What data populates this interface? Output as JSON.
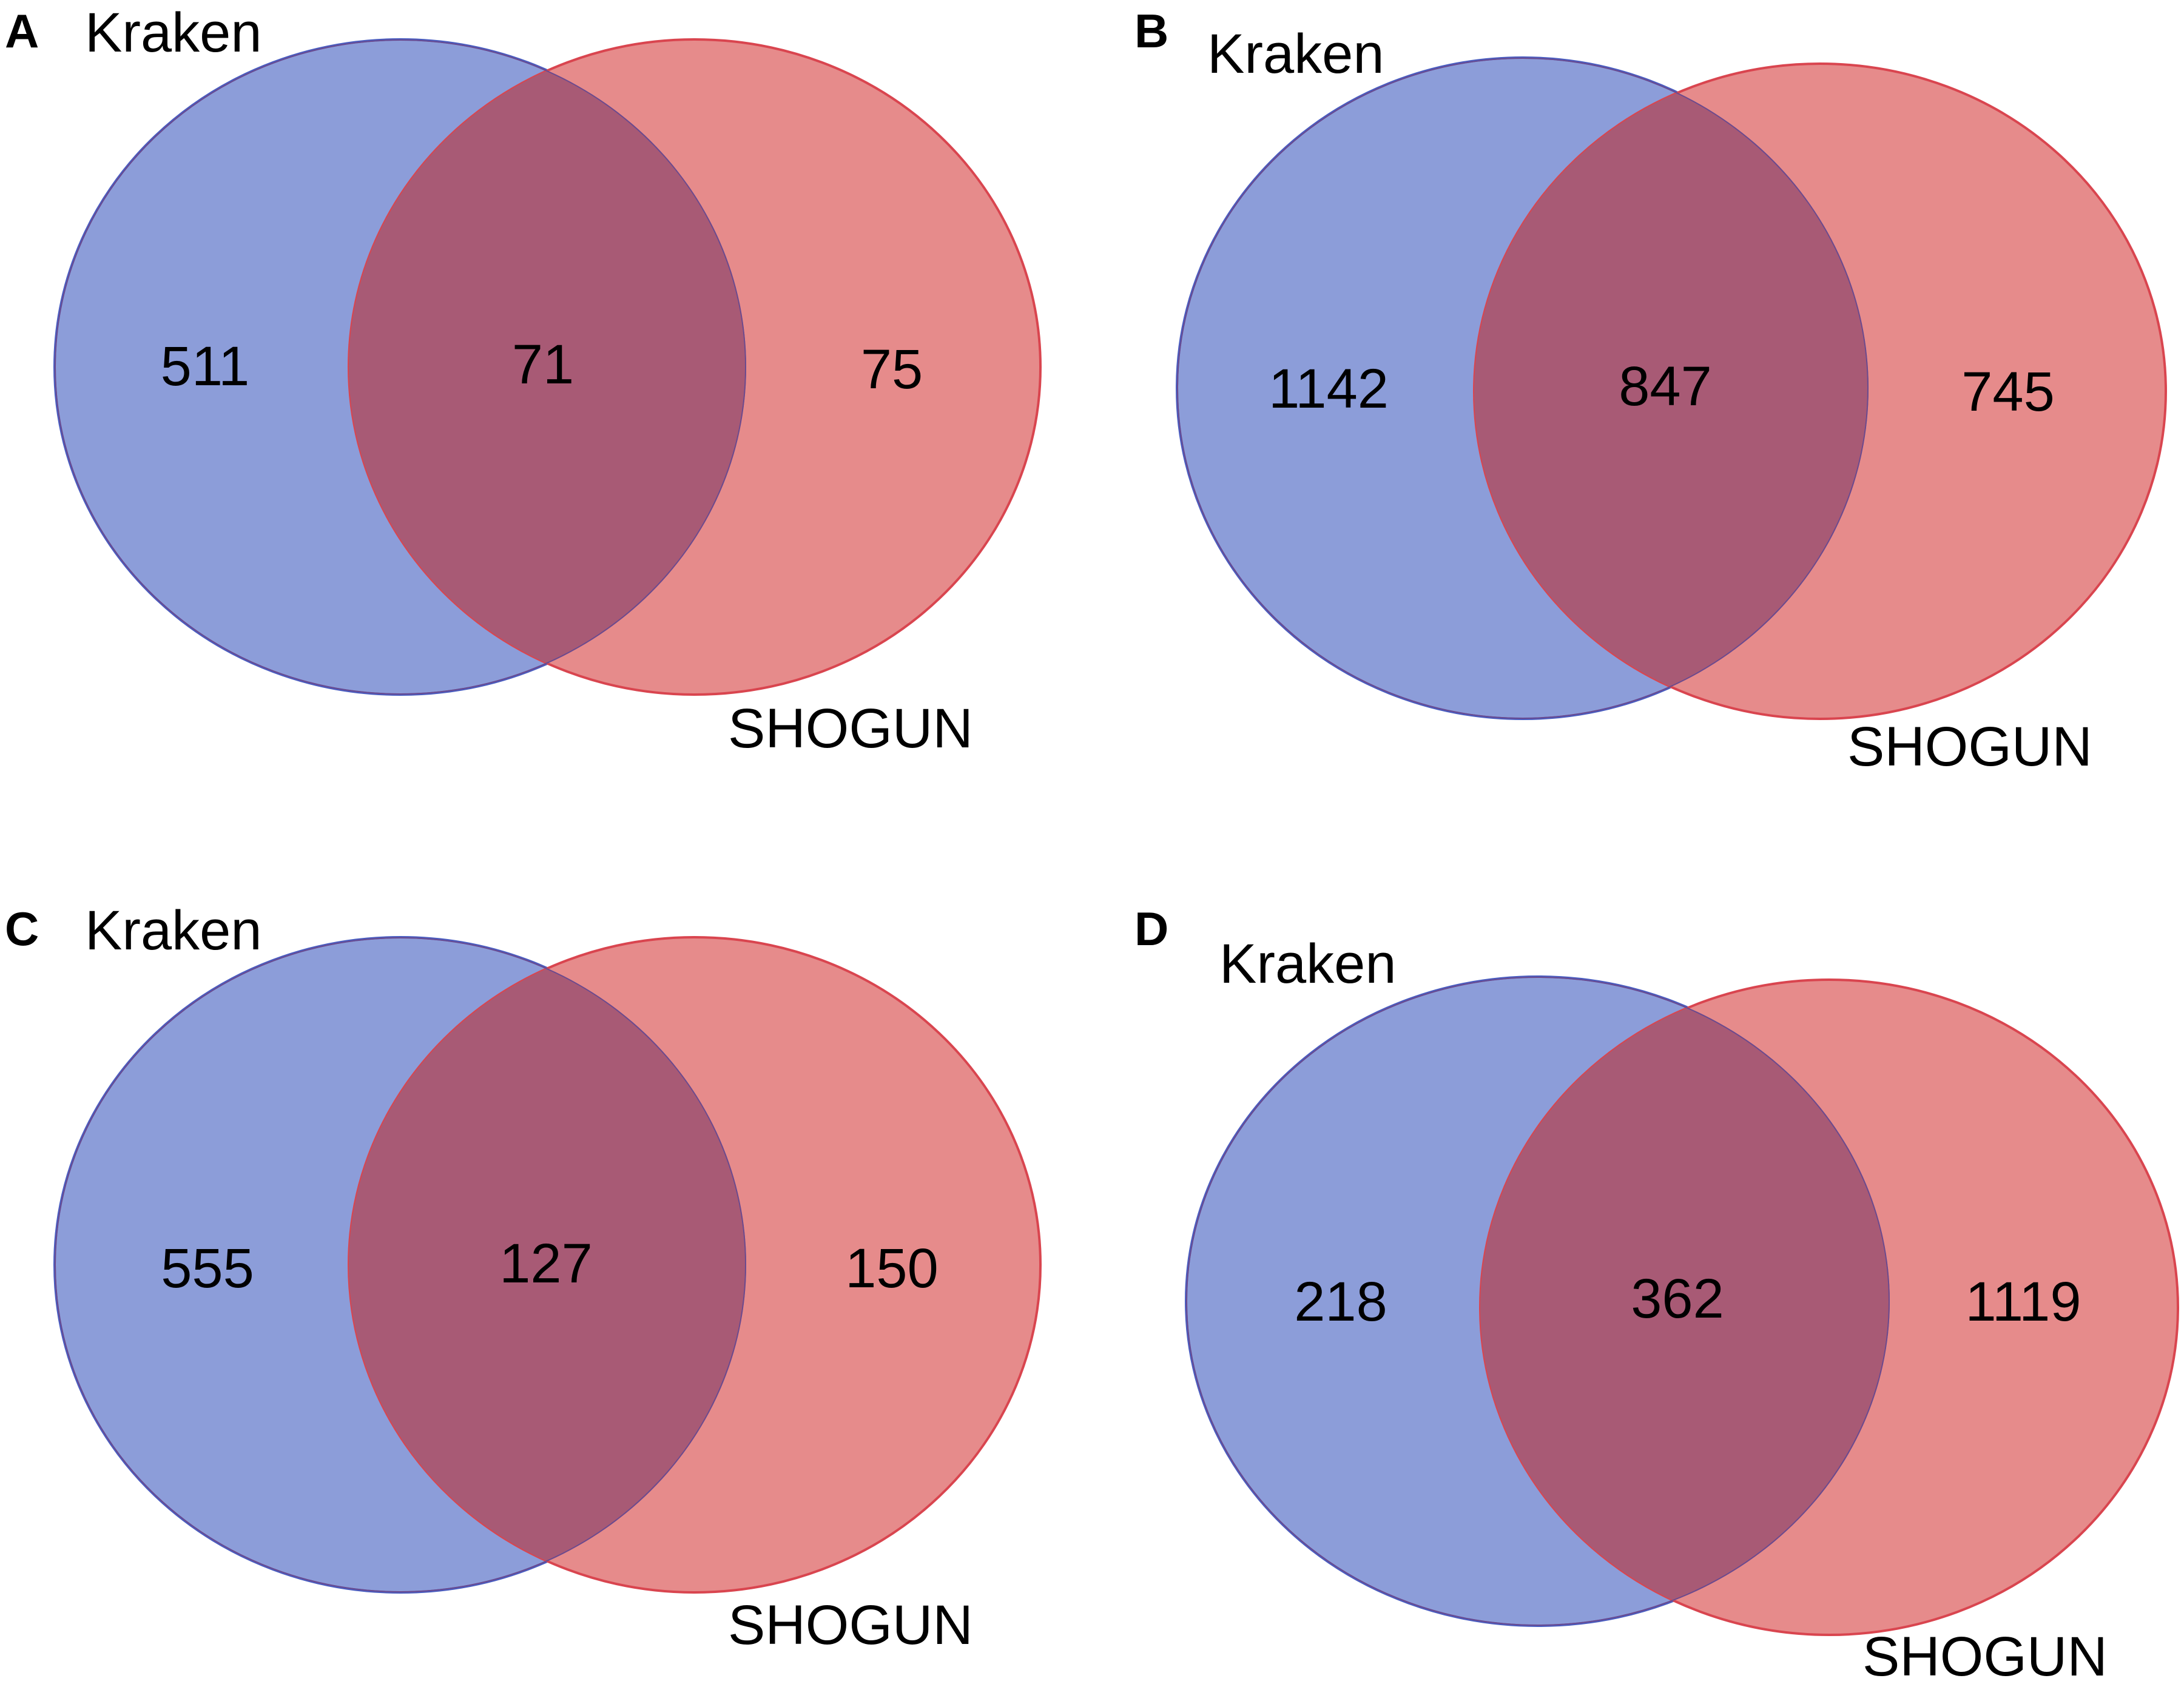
{
  "colors": {
    "kraken_fill": "#8c9dd9",
    "kraken_stroke": "#4a5dc0",
    "shogun_fill": "#e68b8b",
    "shogun_stroke": "#d9454f",
    "overlap_fill": "#a85a75"
  },
  "panels": [
    {
      "letter": "A",
      "set_a": "Kraken",
      "set_b": "SHOGUN",
      "only_a": "511",
      "both": "71",
      "only_b": "75"
    },
    {
      "letter": "B",
      "set_a": "Kraken",
      "set_b": "SHOGUN",
      "only_a": "1142",
      "both": "847",
      "only_b": "745"
    },
    {
      "letter": "C",
      "set_a": "Kraken",
      "set_b": "SHOGUN",
      "only_a": "555",
      "both": "127",
      "only_b": "150"
    },
    {
      "letter": "D",
      "set_a": "Kraken",
      "set_b": "SHOGUN",
      "only_a": "218",
      "both": "362",
      "only_b": "1119"
    }
  ]
}
